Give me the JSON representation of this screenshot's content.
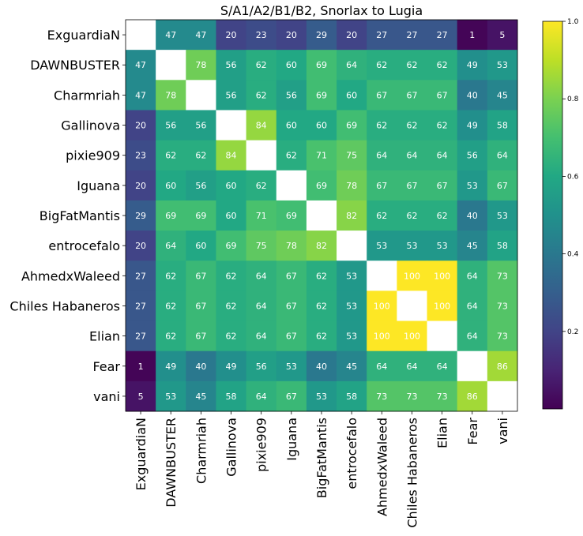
{
  "chart_data": {
    "type": "heatmap",
    "title": "S/A1/A2/B1/B2, Snorlax to Lugia",
    "labels": [
      "ExguardiaN",
      "DAWNBUSTER",
      "Charmriah",
      "Gallinova",
      "pixie909",
      "Iguana",
      "BigFatMantis",
      "entrocefalo",
      "AhmedxWaleed",
      "Chiles Habaneros",
      "Elian",
      "Fear",
      "vani"
    ],
    "values": [
      [
        null,
        47,
        47,
        20,
        23,
        20,
        29,
        20,
        27,
        27,
        27,
        1,
        5
      ],
      [
        47,
        null,
        78,
        56,
        62,
        60,
        69,
        64,
        62,
        62,
        62,
        49,
        53
      ],
      [
        47,
        78,
        null,
        56,
        62,
        56,
        69,
        60,
        67,
        67,
        67,
        40,
        45
      ],
      [
        20,
        56,
        56,
        null,
        84,
        60,
        60,
        69,
        62,
        62,
        62,
        49,
        58
      ],
      [
        23,
        62,
        62,
        84,
        null,
        62,
        71,
        75,
        64,
        64,
        64,
        56,
        64
      ],
      [
        20,
        60,
        56,
        60,
        62,
        null,
        69,
        78,
        67,
        67,
        67,
        53,
        67
      ],
      [
        29,
        69,
        69,
        60,
        71,
        69,
        null,
        82,
        62,
        62,
        62,
        40,
        53
      ],
      [
        20,
        64,
        60,
        69,
        75,
        78,
        82,
        null,
        53,
        53,
        53,
        45,
        58
      ],
      [
        27,
        62,
        67,
        62,
        64,
        67,
        62,
        53,
        null,
        100,
        100,
        64,
        73
      ],
      [
        27,
        62,
        67,
        62,
        64,
        67,
        62,
        53,
        100,
        null,
        100,
        64,
        73
      ],
      [
        27,
        62,
        67,
        62,
        64,
        67,
        62,
        53,
        100,
        100,
        null,
        64,
        73
      ],
      [
        1,
        49,
        40,
        49,
        56,
        53,
        40,
        45,
        64,
        64,
        64,
        null,
        86
      ],
      [
        5,
        53,
        45,
        58,
        64,
        67,
        53,
        58,
        73,
        73,
        73,
        86,
        null
      ]
    ],
    "colormap": "viridis",
    "vmin": 0,
    "vmax": 1,
    "colorbar_ticks": [
      "0.2",
      "0.4",
      "0.6",
      "0.8",
      "1.0"
    ],
    "colorbar_tick_values": [
      0.2,
      0.4,
      0.6,
      0.8,
      1.0
    ]
  }
}
